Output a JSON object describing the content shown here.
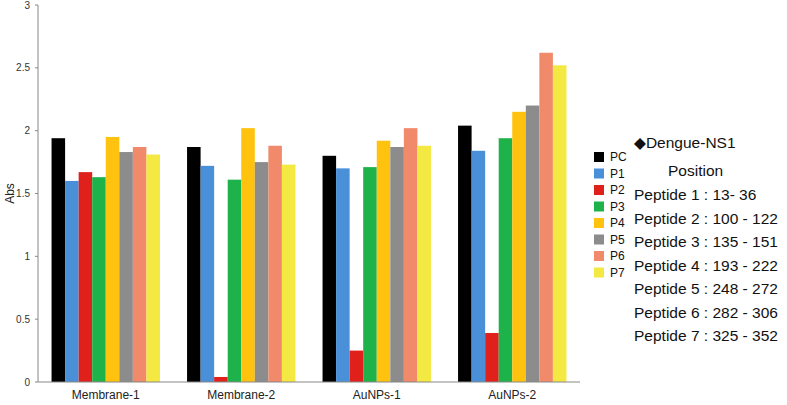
{
  "chart_data": {
    "type": "bar",
    "y_label": "Abs",
    "categories": [
      "Membrane-1",
      "Membrane-2",
      "AuNPs-1",
      "AuNPs-2"
    ],
    "series": [
      {
        "name": "PC",
        "color": "#000000",
        "values": [
          1.94,
          1.87,
          1.8,
          2.04
        ]
      },
      {
        "name": "P1",
        "color": "#4a90d9",
        "values": [
          1.6,
          1.72,
          1.7,
          1.84
        ]
      },
      {
        "name": "P2",
        "color": "#e0201b",
        "values": [
          1.67,
          0.04,
          0.25,
          0.39
        ]
      },
      {
        "name": "P3",
        "color": "#1db34a",
        "values": [
          1.63,
          1.61,
          1.71,
          1.94
        ]
      },
      {
        "name": "P4",
        "color": "#ffc20e",
        "values": [
          1.95,
          2.02,
          1.92,
          2.15
        ]
      },
      {
        "name": "P5",
        "color": "#8c8c8c",
        "values": [
          1.83,
          1.75,
          1.87,
          2.2
        ]
      },
      {
        "name": "P6",
        "color": "#f08a6a",
        "values": [
          1.87,
          1.88,
          2.02,
          2.62
        ]
      },
      {
        "name": "P7",
        "color": "#f4e842",
        "values": [
          1.81,
          1.73,
          1.88,
          2.52
        ]
      }
    ],
    "ylim": [
      0,
      3
    ],
    "yticks": [
      0,
      0.5,
      1,
      1.5,
      2,
      2.5,
      3
    ],
    "grid": false,
    "legend": "right",
    "annotations": [
      "◆Dengue-NS1",
      "Position",
      "Peptide 1 : 13- 36",
      "Peptide 2 : 100 - 122",
      "Peptide 3 : 135 - 151",
      "Peptide 4 : 193 - 222",
      "Peptide 5 : 248 - 272",
      "Peptide 6 : 282 - 306",
      "Peptide 7 : 325 - 352"
    ]
  }
}
